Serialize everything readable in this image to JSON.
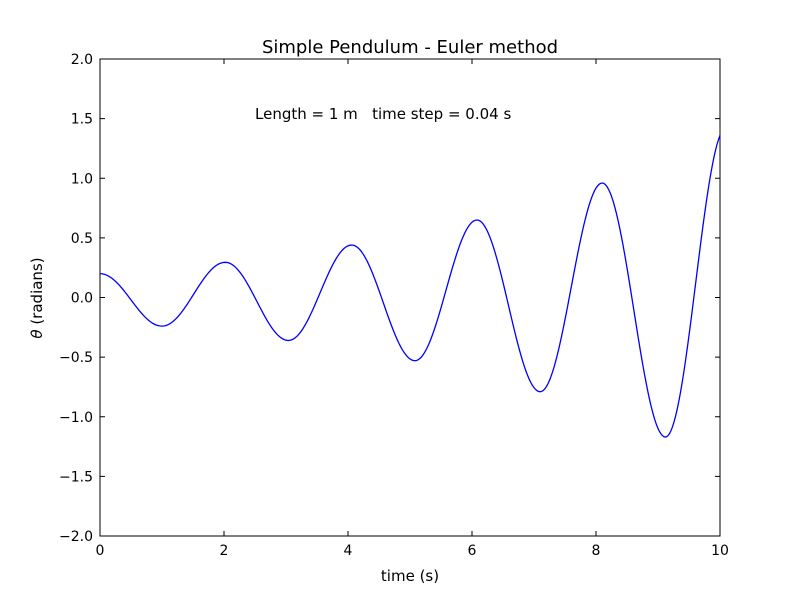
{
  "chart_data": {
    "type": "line",
    "title": "Simple Pendulum - Euler method",
    "xlabel": "time (s)",
    "ylabel_symbol": "θ",
    "ylabel_text": " (radians)",
    "annotation": "Length = 1 m   time step = 0.04 s",
    "xlim": [
      0,
      10
    ],
    "ylim": [
      -2.0,
      2.0
    ],
    "xticks": [
      0,
      2,
      4,
      6,
      8,
      10
    ],
    "xtick_labels": [
      "0",
      "2",
      "4",
      "6",
      "8",
      "10"
    ],
    "yticks": [
      -2.0,
      -1.5,
      -1.0,
      -0.5,
      0.0,
      0.5,
      1.0,
      1.5,
      2.0
    ],
    "ytick_labels": [
      "−2.0",
      "−1.5",
      "−1.0",
      "−0.5",
      "0.0",
      "0.5",
      "1.0",
      "1.5",
      "2.0"
    ],
    "grid": false,
    "line_color": "#0000ff",
    "series": [
      {
        "x": [
          0,
          1.0,
          2.02,
          3.04,
          4.06,
          5.08,
          6.08,
          7.1,
          8.1,
          9.12,
          10.0
        ],
        "y": [
          0.2,
          -0.24,
          0.295,
          -0.36,
          0.44,
          -0.53,
          0.65,
          -0.79,
          0.96,
          -1.17,
          1.36
        ]
      }
    ]
  }
}
